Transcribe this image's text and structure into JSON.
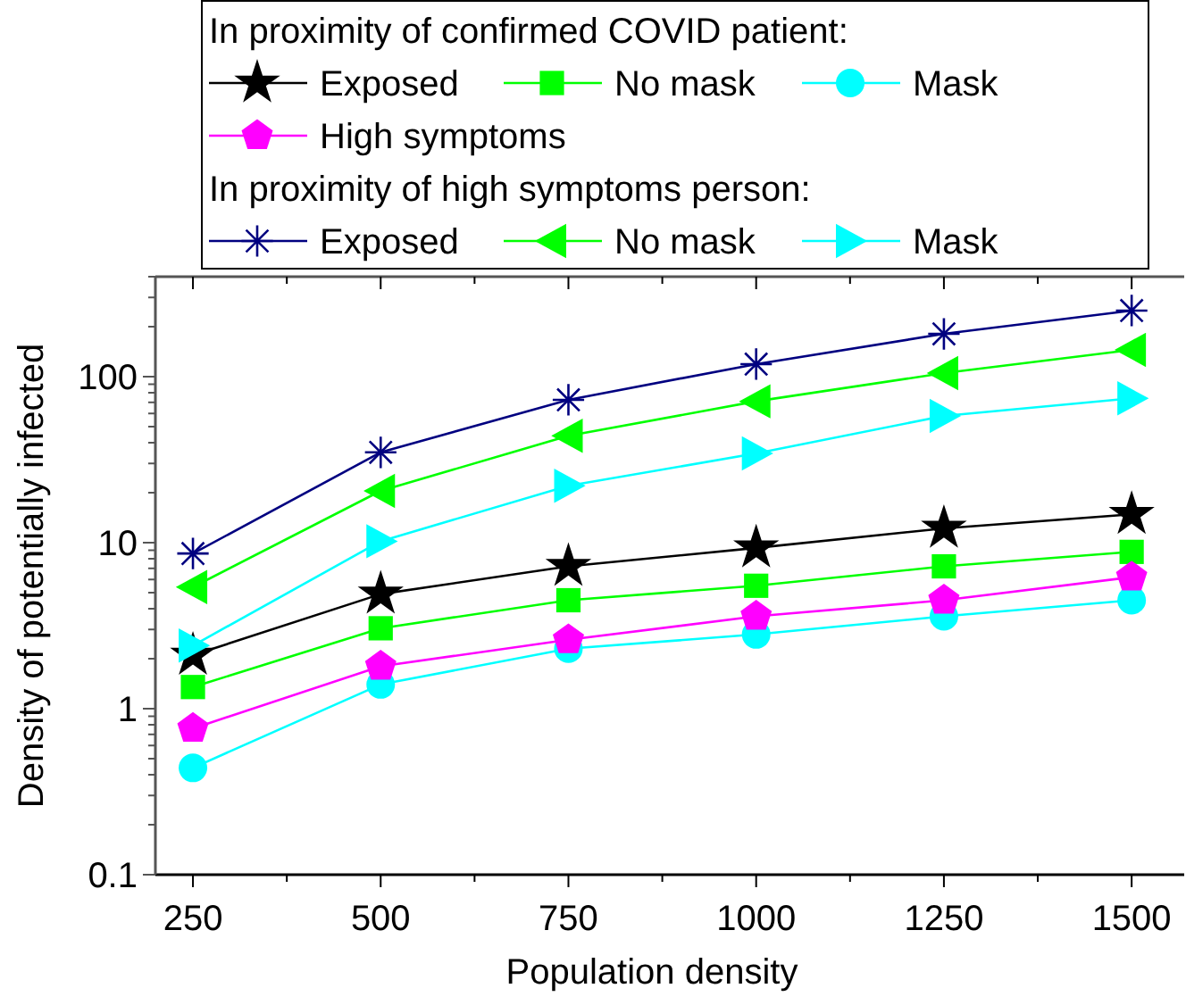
{
  "chart_data": {
    "type": "line",
    "xlabel": "Population density",
    "ylabel": "Density of potentially infected",
    "x": [
      250,
      500,
      750,
      1000,
      1250,
      1500
    ],
    "xlim": [
      200,
      1570
    ],
    "xticks": [
      250,
      {
        "value": 375,
        "label": null
      },
      500,
      {
        "value": 625,
        "label": null
      },
      750,
      {
        "value": 875,
        "label": null
      },
      1000,
      {
        "value": 1125,
        "label": null
      },
      1250,
      {
        "value": 1375,
        "label": null
      },
      1500
    ],
    "ylim": [
      0.1,
      400
    ],
    "log": "y",
    "grid": false,
    "legend": "top",
    "yticks": [
      0.1,
      {
        "value": 0.2,
        "label": null
      },
      {
        "value": 0.3,
        "label": null
      },
      {
        "value": 0.4,
        "label": null
      },
      {
        "value": 0.5,
        "label": null
      },
      {
        "value": 0.6,
        "label": null
      },
      {
        "value": 0.7,
        "label": null
      },
      {
        "value": 0.8,
        "label": null
      },
      {
        "value": 0.9,
        "label": null
      },
      1,
      {
        "value": 2,
        "label": null
      },
      {
        "value": 3,
        "label": null
      },
      {
        "value": 4,
        "label": null
      },
      {
        "value": 5,
        "label": null
      },
      {
        "value": 6,
        "label": null
      },
      {
        "value": 7,
        "label": null
      },
      {
        "value": 8,
        "label": null
      },
      {
        "value": 9,
        "label": null
      },
      10,
      {
        "value": 20,
        "label": null
      },
      {
        "value": 30,
        "label": null
      },
      {
        "value": 40,
        "label": null
      },
      {
        "value": 50,
        "label": null
      },
      {
        "value": 60,
        "label": null
      },
      {
        "value": 70,
        "label": null
      },
      {
        "value": 80,
        "label": null
      },
      {
        "value": 90,
        "label": null
      },
      100,
      {
        "value": 200,
        "label": null
      },
      {
        "value": 300,
        "label": null
      },
      {
        "value": 400,
        "label": null
      }
    ],
    "annotations": [
      "In proximity of confirmed COVID patient:",
      "In proximity of high symptoms person:"
    ],
    "series": [
      {
        "name": "Exposed",
        "color": "#000000",
        "marker": "star",
        "values": [
          2.1,
          4.9,
          7.2,
          9.3,
          12.2,
          14.8
        ]
      },
      {
        "name": "No mask",
        "color": "#00ff00",
        "marker": "square",
        "values": [
          1.35,
          3.05,
          4.5,
          5.5,
          7.2,
          8.8
        ]
      },
      {
        "name": "Mask",
        "color": "#00ffff",
        "marker": "circle",
        "values": [
          0.44,
          1.4,
          2.3,
          2.8,
          3.6,
          4.5
        ]
      },
      {
        "name": "High symptoms",
        "color": "#ff00ff",
        "marker": "diamond",
        "values": [
          0.76,
          1.8,
          2.6,
          3.6,
          4.5,
          6.2
        ]
      },
      {
        "name": "Exposed",
        "color": "#000080",
        "marker": "cross",
        "values": [
          8.6,
          35,
          72.5,
          119,
          181,
          250
        ]
      },
      {
        "name": "No mask",
        "color": "#00ff00",
        "marker": "triangle-left",
        "values": [
          5.4,
          20.5,
          44,
          71,
          105,
          145
        ]
      },
      {
        "name": "Mask",
        "color": "#00ffff",
        "marker": "triangle-right",
        "values": [
          2.4,
          10.2,
          22,
          34.5,
          58,
          74
        ]
      }
    ]
  }
}
